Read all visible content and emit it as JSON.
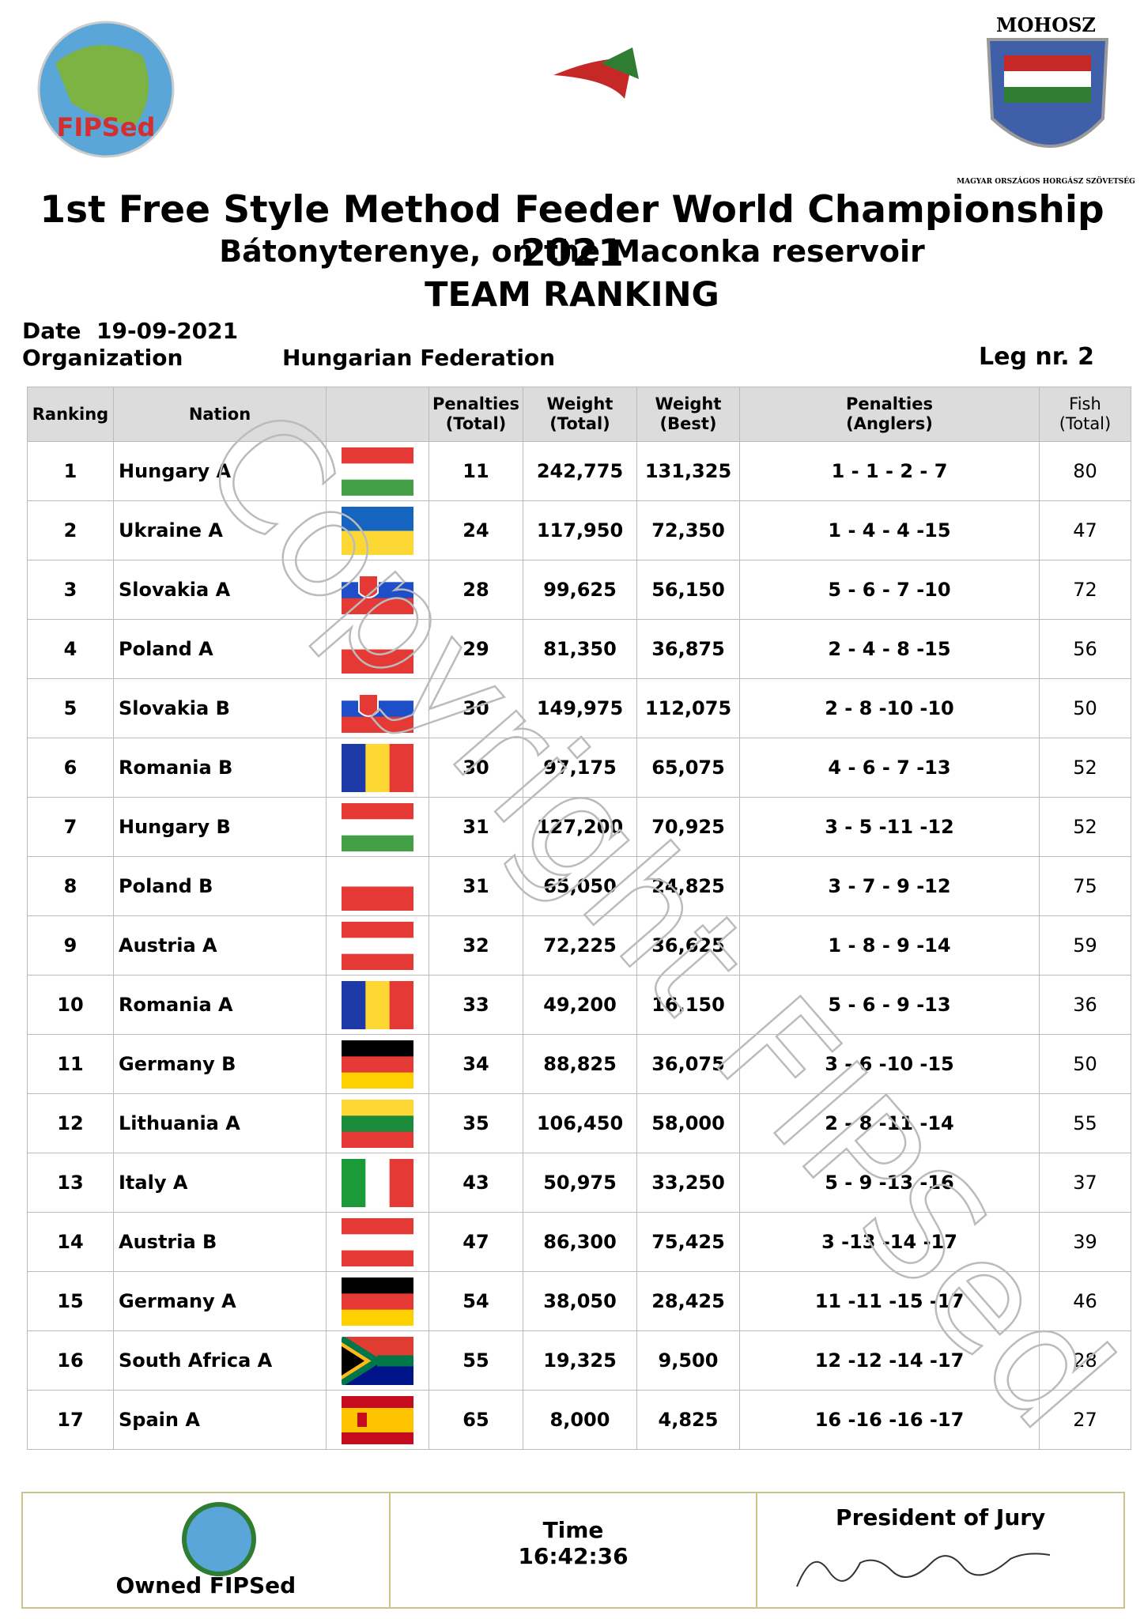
{
  "header": {
    "fipsed_logo_text": "FIPSed",
    "mohosz_logo_title": "MOHOSZ",
    "mohosz_logo_ring": "MAGYAR ORSZÁGOS HORGÁSZ SZÖVETSÉG",
    "title": "1st Free Style Method Feeder World Championship 2021",
    "subtitle": "Bátonyterenye, on the Maconka reservoir",
    "heading": "TEAM RANKING"
  },
  "info": {
    "date_label": "Date",
    "date": "19-09-2021",
    "organization_label": "Organization",
    "organization": "Hungarian Federation",
    "leg_label": "Leg nr.",
    "leg": 2
  },
  "table": {
    "columns": [
      [
        "Ranking"
      ],
      [
        "Nation"
      ],
      [],
      [
        "Penalties",
        "(Total)"
      ],
      [
        "Weight",
        "(Total)"
      ],
      [
        "Weight",
        "(Best)"
      ],
      [
        "Penalties",
        "(Anglers)"
      ],
      [
        "Fish",
        "(Total)"
      ]
    ],
    "rows": [
      [
        1,
        "Hungary A",
        11,
        "242,775",
        "131,325",
        "1 - 1 - 2 - 7",
        80
      ],
      [
        2,
        "Ukraine A",
        24,
        "117,950",
        "72,350",
        "1 - 4 - 4 -15",
        47
      ],
      [
        3,
        "Slovakia A",
        28,
        "99,625",
        "56,150",
        "5 - 6 - 7 -10",
        72
      ],
      [
        4,
        "Poland A",
        29,
        "81,350",
        "36,875",
        "2 - 4 - 8 -15",
        56
      ],
      [
        5,
        "Slovakia B",
        30,
        "149,975",
        "112,075",
        "2 - 8 -10 -10",
        50
      ],
      [
        6,
        "Romania B",
        30,
        "97,175",
        "65,075",
        "4 - 6 - 7 -13",
        52
      ],
      [
        7,
        "Hungary B",
        31,
        "127,200",
        "70,925",
        "3 - 5 -11 -12",
        52
      ],
      [
        8,
        "Poland B",
        31,
        "65,050",
        "24,825",
        "3 - 7 - 9 -12",
        75
      ],
      [
        9,
        "Austria A",
        32,
        "72,225",
        "36,625",
        "1 - 8 - 9 -14",
        59
      ],
      [
        10,
        "Romania A",
        33,
        "49,200",
        "16,150",
        "5 - 6 - 9 -13",
        36
      ],
      [
        11,
        "Germany B",
        34,
        "88,825",
        "36,075",
        "3 - 6 -10 -15",
        50
      ],
      [
        12,
        "Lithuania A",
        35,
        "106,450",
        "58,000",
        "2 - 8 -11 -14",
        55
      ],
      [
        13,
        "Italy A",
        43,
        "50,975",
        "33,250",
        "5 - 9 -13 -16",
        37
      ],
      [
        14,
        "Austria B",
        47,
        "86,300",
        "75,425",
        "3 -13 -14 -17",
        39
      ],
      [
        15,
        "Germany A",
        54,
        "38,050",
        "28,425",
        "11 -11 -15 -17",
        46
      ],
      [
        16,
        "South Africa A",
        55,
        "19,325",
        "9,500",
        "12 -12 -14 -17",
        28
      ],
      [
        17,
        "Spain A",
        65,
        "8,000",
        "4,825",
        "16 -16 -16 -17",
        27
      ]
    ]
  },
  "watermark": "Copyright FIPSed",
  "footer": {
    "owned": "Owned FIPSed",
    "time_label": "Time",
    "time": "16:42:36",
    "jury_label": "President of Jury"
  }
}
